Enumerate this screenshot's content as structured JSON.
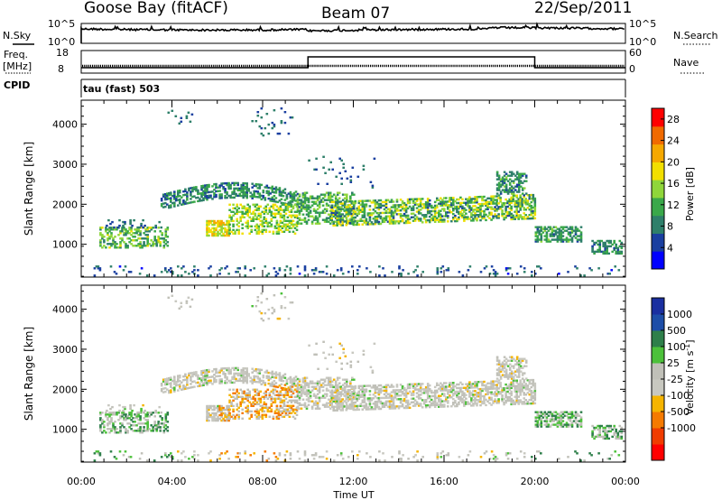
{
  "header": {
    "station": "Goose Bay (fitACF)",
    "beam": "Beam 07",
    "date": "22/Sep/2011"
  },
  "strip": {
    "nsky_label": "N.Sky",
    "nsky_ticks": [
      "10^5",
      "10^0"
    ],
    "nsearch_label": "N.Search",
    "nsearch_ticks": [
      "10^5",
      "10^0"
    ],
    "freq_label": "Freq.",
    "freq_unit": "[MHz]",
    "freq_ticks": [
      "18",
      "8"
    ],
    "nave_label": "Nave",
    "nave_ticks": [
      "60",
      "0"
    ],
    "cpid_label": "CPID",
    "cpid_value": "tau (fast) 503"
  },
  "colors": {
    "power_scale": [
      "#0000ff",
      "#1a3fa0",
      "#2e7f6a",
      "#3aa84a",
      "#8fd63a",
      "#f2df00",
      "#f5a800",
      "#f06a00",
      "#ff0000"
    ],
    "velocity_scale": [
      "#1a2fa0",
      "#1d4ea8",
      "#2e7f4a",
      "#4cc13a",
      "#c0c0b8",
      "#c8c8c0",
      "#f5b400",
      "#f57a00",
      "#f03c00",
      "#ff0000"
    ],
    "axis": "#000000"
  },
  "chart_data": [
    {
      "type": "heatmap",
      "name": "power",
      "xlabel": "",
      "ylabel": "Slant Range [km]",
      "y_ticks": [
        "1000",
        "2000",
        "3000",
        "4000"
      ],
      "y_range_km": [
        180,
        4600
      ],
      "colorbar_label": "Power [dB]",
      "colorbar_ticks": [
        "4",
        "8",
        "12",
        "16",
        "20",
        "24",
        "28"
      ],
      "colorbar_range": [
        0,
        30
      ]
    },
    {
      "type": "heatmap",
      "name": "velocity",
      "xlabel": "Time UT",
      "ylabel": "Slant Range [km]",
      "y_ticks": [
        "1000",
        "2000",
        "3000",
        "4000"
      ],
      "y_range_km": [
        180,
        4600
      ],
      "x_ticks": [
        "00:00",
        "04:00",
        "08:00",
        "12:00",
        "16:00",
        "20:00",
        "00:00"
      ],
      "x_range_hours": [
        0,
        24
      ],
      "colorbar_label": "Velocity [m s^-1]",
      "colorbar_ticks": [
        "1000",
        "500",
        "100",
        "25",
        "-25",
        "-100",
        "-500",
        "-1000"
      ]
    }
  ]
}
